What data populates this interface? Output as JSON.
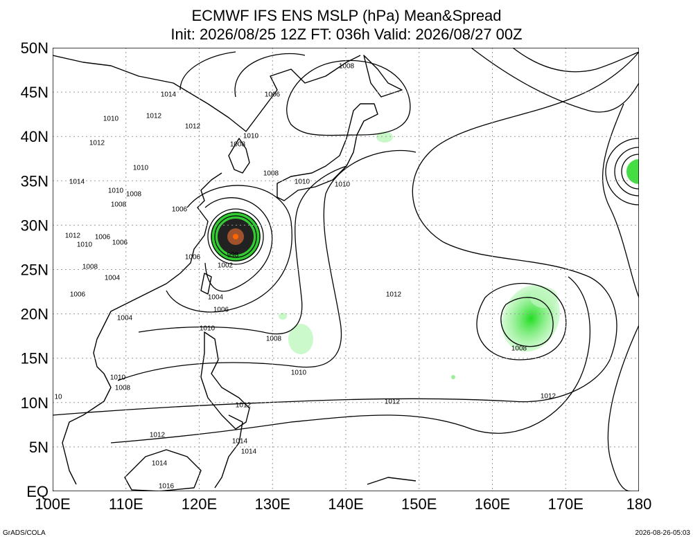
{
  "header": {
    "title": "ECMWF IFS ENS MSLP (hPa) Mean&Spread",
    "subtitle": "Init: 2026/08/25 12Z  FT: 036h  Valid: 2026/08/27 00Z"
  },
  "lat_labels": [
    "50N",
    "45N",
    "40N",
    "35N",
    "30N",
    "25N",
    "20N",
    "15N",
    "10N",
    "5N",
    "EQ"
  ],
  "lon_labels": [
    "100E",
    "110E",
    "120E",
    "130E",
    "140E",
    "150E",
    "160E",
    "170E",
    "180"
  ],
  "contour_labels": [
    "1008",
    "1006",
    "1014",
    "1012",
    "1010",
    "1012",
    "1012",
    "1010",
    "1008",
    "1010",
    "1008",
    "1014",
    "1010",
    "1010",
    "1010",
    "1008",
    "1008",
    "1006",
    "1012",
    "1010",
    "1006",
    "1006",
    "998",
    "1006",
    "1002",
    "1008",
    "1004",
    "1012",
    "1006",
    "1004",
    "1006",
    "1004",
    "1010",
    "1008",
    "1008",
    "1010",
    "1010",
    "1008",
    "1012",
    "1012",
    "1012",
    "10",
    "1012",
    "1014",
    "1014",
    "1014",
    "1016"
  ],
  "footer": {
    "left": "GrADS/COLA",
    "right": "2026-08-26-05:03"
  }
}
